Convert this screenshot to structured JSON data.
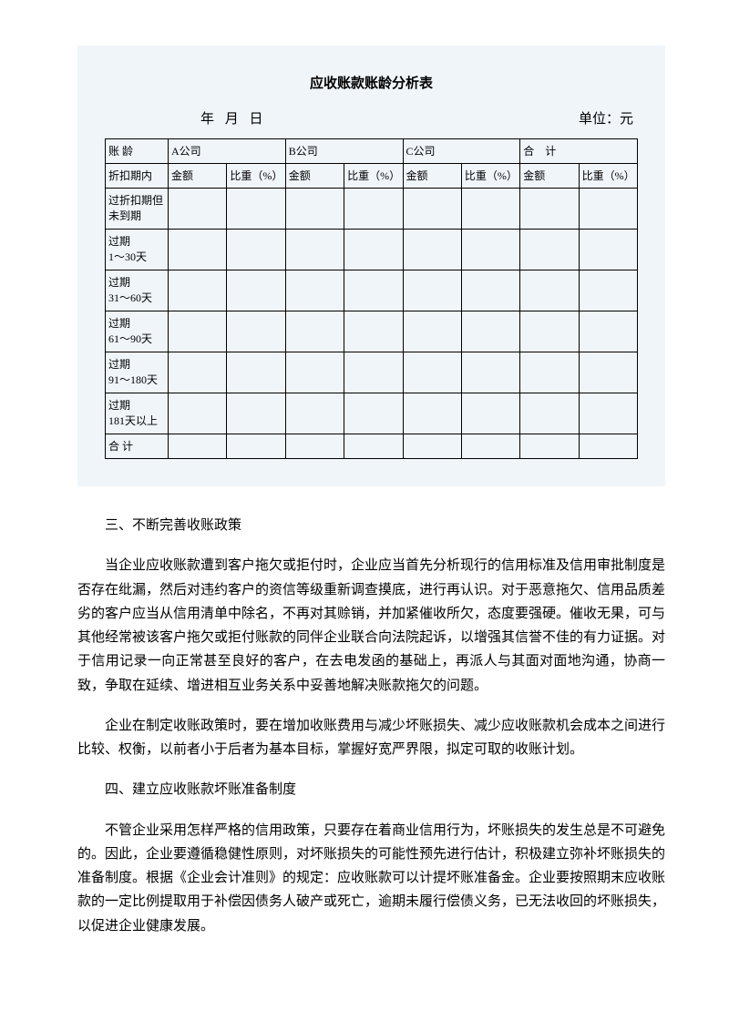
{
  "table": {
    "title": "应收账款账龄分析表",
    "date_label": "年 月 日",
    "unit_label": "单位：元",
    "header1": {
      "col_age": "账  龄",
      "companies": [
        "A公司",
        "B公司",
        "C公司",
        "合　计"
      ]
    },
    "header2": {
      "col_age": "折扣期内",
      "sub": [
        "金额",
        "比重（%）"
      ]
    },
    "rows": [
      "过折扣期但未到期",
      "过期\n1～30天",
      "过期\n31～60天",
      "过期\n61～90天",
      "过期\n91～180天",
      "过期\n181天以上",
      "合  计"
    ]
  },
  "sections": {
    "s3_title": "三、不断完善收账政策",
    "s3_p1": "当企业应收账款遭到客户拖欠或拒付时，企业应当首先分析现行的信用标准及信用审批制度是否存在纰漏，然后对违约客户的资信等级重新调查摸底，进行再认识。对于恶意拖欠、信用品质差劣的客户应当从信用清单中除名，不再对其赊销，并加紧催收所欠，态度要强硬。催收无果，可与其他经常被该客户拖欠或拒付账款的同伴企业联合向法院起诉，以增强其信誉不佳的有力证据。对于信用记录一向正常甚至良好的客户，在去电发函的基础上，再派人与其面对面地沟通，协商一致，争取在延续、增进相互业务关系中妥善地解决账款拖欠的问题。",
    "s3_p2": "企业在制定收账政策时，要在增加收账费用与减少坏账损失、减少应收账款机会成本之间进行比较、权衡，以前者小于后者为基本目标，掌握好宽严界限，拟定可取的收账计划。",
    "s4_title": "四、建立应收账款坏账准备制度",
    "s4_p1": "不管企业采用怎样严格的信用政策，只要存在着商业信用行为，坏账损失的发生总是不可避免的。因此，企业要遵循稳健性原则，对坏账损失的可能性预先进行估计，积极建立弥补坏账损失的准备制度。根据《企业会计准则》的规定：应收账款可以计提坏账准备金。企业要按照期末应收账款的一定比例提取用于补偿因债务人破产或死亡，逾期未履行偿债义务，已无法收回的坏账损失，以促进企业健康发展。"
  }
}
